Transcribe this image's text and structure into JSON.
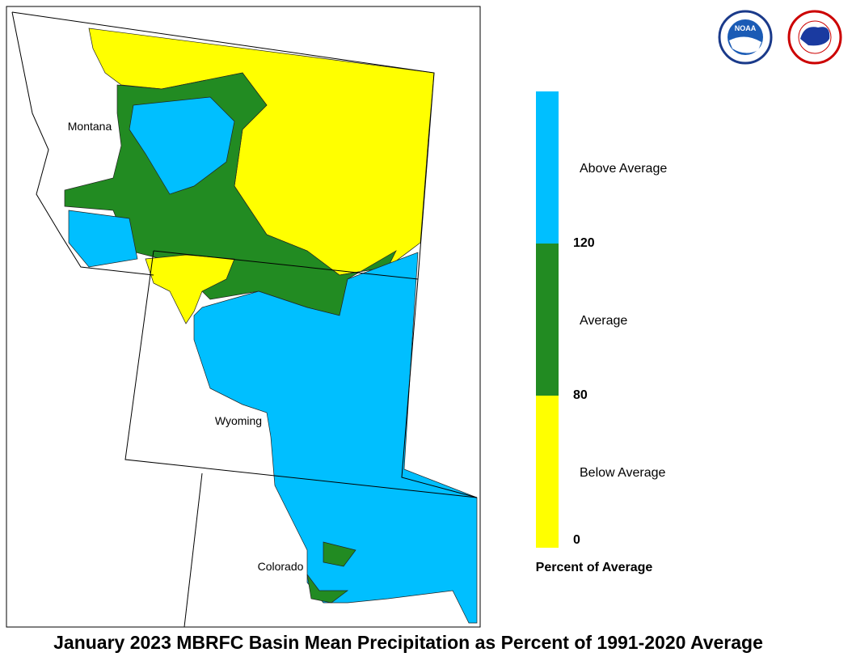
{
  "title": "January 2023 MBRFC Basin Mean Precipitation as Percent of 1991-2020 Average",
  "states": [
    "Montana",
    "Wyoming",
    "Colorado"
  ],
  "logos": {
    "noaa": "NOAA"
  },
  "legend": {
    "title": "Percent of Average",
    "bins": [
      {
        "label": "Below Average",
        "color": "#ffff00"
      },
      {
        "label": "Average",
        "color": "#228b22"
      },
      {
        "label": "Above Average",
        "color": "#00bfff"
      }
    ],
    "ticks": [
      0,
      80,
      120
    ]
  }
}
